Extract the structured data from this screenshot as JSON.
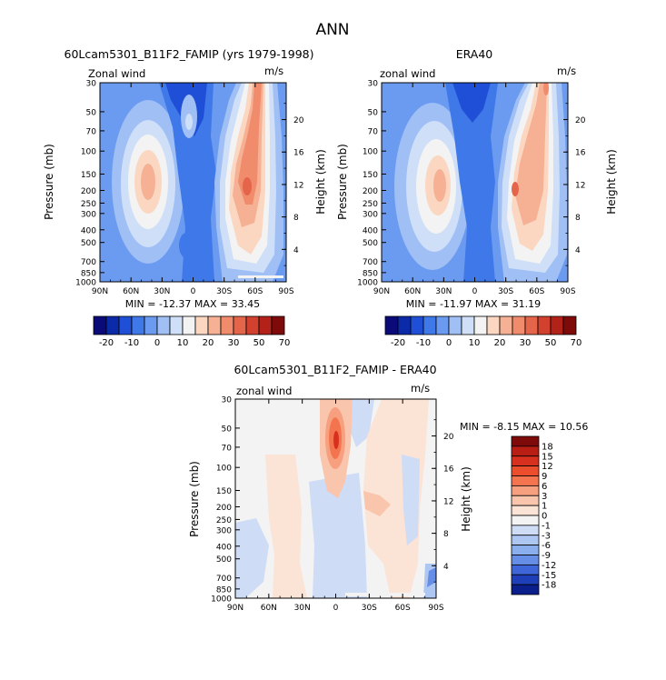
{
  "figure_title": "ANN",
  "chart_data": [
    {
      "type": "heatmap",
      "title": "60Lcam5301_B11F2_FAMIP (yrs 1979-1998)",
      "variable": "Zonal wind",
      "units": "m/s",
      "xlabel": "",
      "ylabel": "Pressure (mb)",
      "y2label": "Height (km)",
      "x_ticks": [
        "90N",
        "60N",
        "30N",
        "0",
        "30S",
        "60S",
        "90S"
      ],
      "x_values": [
        90,
        60,
        30,
        0,
        -30,
        -60,
        -90
      ],
      "y_ticks": [
        "30",
        "50",
        "70",
        "100",
        "150",
        "200",
        "250",
        "300",
        "400",
        "500",
        "700",
        "850",
        "1000"
      ],
      "y2_ticks": [
        "4",
        "8",
        "12",
        "16",
        "20"
      ],
      "y_scale": "log",
      "ylim": [
        1000,
        30
      ],
      "xlim": [
        90,
        -90
      ],
      "stats": "MIN = -12.37   MAX = 33.45",
      "min": -12.37,
      "max": 33.45,
      "colorbar": {
        "orientation": "horizontal",
        "labels": [
          "-20",
          "-10",
          "0",
          "10",
          "20",
          "30",
          "50",
          "70"
        ]
      }
    },
    {
      "type": "heatmap",
      "title": "ERA40",
      "variable": "zonal wind",
      "units": "m/s",
      "xlabel": "",
      "ylabel": "Pressure (mb)",
      "y2label": "Height (km)",
      "x_ticks": [
        "90N",
        "60N",
        "30N",
        "0",
        "30S",
        "60S",
        "90S"
      ],
      "x_values": [
        90,
        60,
        30,
        0,
        -30,
        -60,
        -90
      ],
      "y_ticks": [
        "30",
        "50",
        "70",
        "100",
        "150",
        "200",
        "250",
        "300",
        "400",
        "500",
        "700",
        "850",
        "1000"
      ],
      "y2_ticks": [
        "4",
        "8",
        "12",
        "16",
        "20"
      ],
      "y_scale": "log",
      "ylim": [
        1000,
        30
      ],
      "xlim": [
        90,
        -90
      ],
      "stats": "MIN = -11.97   MAX = 31.19",
      "min": -11.97,
      "max": 31.19,
      "colorbar": {
        "orientation": "horizontal",
        "labels": [
          "-20",
          "-10",
          "0",
          "10",
          "20",
          "30",
          "50",
          "70"
        ]
      }
    },
    {
      "type": "heatmap",
      "title": "60Lcam5301_B11F2_FAMIP - ERA40",
      "variable": "zonal wind",
      "units": "m/s",
      "xlabel": "",
      "ylabel": "Pressure (mb)",
      "y2label": "Height (km)",
      "x_ticks": [
        "90N",
        "60N",
        "30N",
        "0",
        "30S",
        "60S",
        "90S"
      ],
      "x_values": [
        90,
        60,
        30,
        0,
        -30,
        -60,
        -90
      ],
      "y_ticks": [
        "30",
        "50",
        "70",
        "100",
        "150",
        "200",
        "250",
        "300",
        "400",
        "500",
        "700",
        "850",
        "1000"
      ],
      "y2_ticks": [
        "4",
        "8",
        "12",
        "16",
        "20"
      ],
      "y_scale": "log",
      "ylim": [
        1000,
        30
      ],
      "xlim": [
        90,
        -90
      ],
      "stats": "MIN =  -8.15   MAX =  10.56",
      "min": -8.15,
      "max": 10.56,
      "colorbar": {
        "orientation": "vertical",
        "labels": [
          "18",
          "15",
          "12",
          "9",
          "6",
          "3",
          "1",
          "0",
          "-1",
          "-3",
          "-6",
          "-9",
          "-12",
          "-15",
          "-18"
        ]
      }
    }
  ],
  "palettes": {
    "full": [
      "#0a0a78",
      "#0b2aa8",
      "#1f4fd6",
      "#3f78e8",
      "#6b9bf0",
      "#9fbff5",
      "#cfdff8",
      "#f3f3f3",
      "#fbd7c2",
      "#f6b195",
      "#f08c6c",
      "#e5654a",
      "#d2402e",
      "#b32218",
      "#7e0a0a"
    ],
    "diff_top_to_bottom": [
      "#7e0a0a",
      "#b81e14",
      "#d8301f",
      "#ec4e2d",
      "#f3744f",
      "#f6a07f",
      "#f9c6ad",
      "#fbe3d6",
      "#f3f3f3",
      "#cfdcf6",
      "#adc6f2",
      "#8aaeee",
      "#668ee7",
      "#3f66d8",
      "#1f3fb8",
      "#0b1f8c"
    ]
  }
}
